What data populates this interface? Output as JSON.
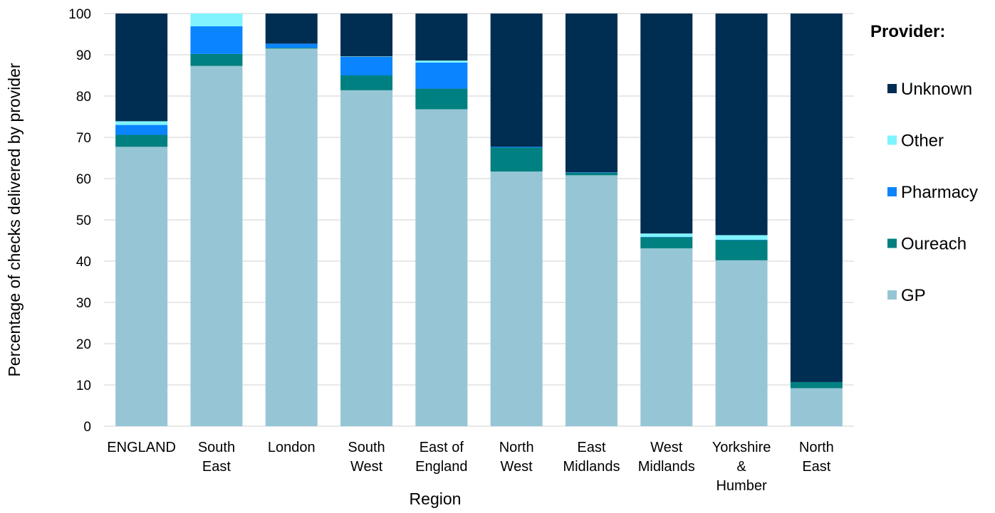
{
  "chart_data": {
    "type": "bar",
    "stacked": true,
    "xlabel": "Region",
    "ylabel": "Percentage of checks delivered by provider",
    "ylim": [
      0,
      100
    ],
    "yticks": [
      0,
      10,
      20,
      30,
      40,
      50,
      60,
      70,
      80,
      90,
      100
    ],
    "grid": true,
    "legend_title": "Provider:",
    "legend_position": "right",
    "categories": [
      [
        "ENGLAND"
      ],
      [
        "South",
        "East"
      ],
      [
        "London"
      ],
      [
        "South",
        "West"
      ],
      [
        "East of",
        "England"
      ],
      [
        "North",
        "West"
      ],
      [
        "East",
        "Midlands"
      ],
      [
        "West",
        "Midlands"
      ],
      [
        "Yorkshire",
        "&",
        "Humber"
      ],
      [
        "North",
        "East"
      ]
    ],
    "series": [
      {
        "name": "GP",
        "color": "#96c6d6",
        "values": [
          67.7,
          87.3,
          91.5,
          81.4,
          76.8,
          61.7,
          60.8,
          43.1,
          40.2,
          9.2
        ]
      },
      {
        "name": "Oureach",
        "color": "#008080",
        "values": [
          2.9,
          2.9,
          0.2,
          3.6,
          5.0,
          5.8,
          0.6,
          2.7,
          4.9,
          1.5
        ]
      },
      {
        "name": "Pharmacy",
        "color": "#0a84ff",
        "values": [
          2.4,
          6.7,
          1.0,
          4.5,
          6.3,
          0.2,
          0.1,
          0.1,
          0.1,
          0.0
        ]
      },
      {
        "name": "Other",
        "color": "#7ff4ff",
        "values": [
          0.9,
          3.1,
          0.0,
          0.1,
          0.5,
          0.0,
          0.0,
          0.8,
          1.1,
          0.0
        ]
      },
      {
        "name": "Unknown",
        "color": "#002d52",
        "values": [
          26.1,
          0.0,
          7.3,
          10.4,
          11.4,
          32.3,
          38.5,
          53.3,
          53.7,
          89.3
        ]
      }
    ],
    "legend_order": [
      "Unknown",
      "Other",
      "Pharmacy",
      "Oureach",
      "GP"
    ]
  }
}
